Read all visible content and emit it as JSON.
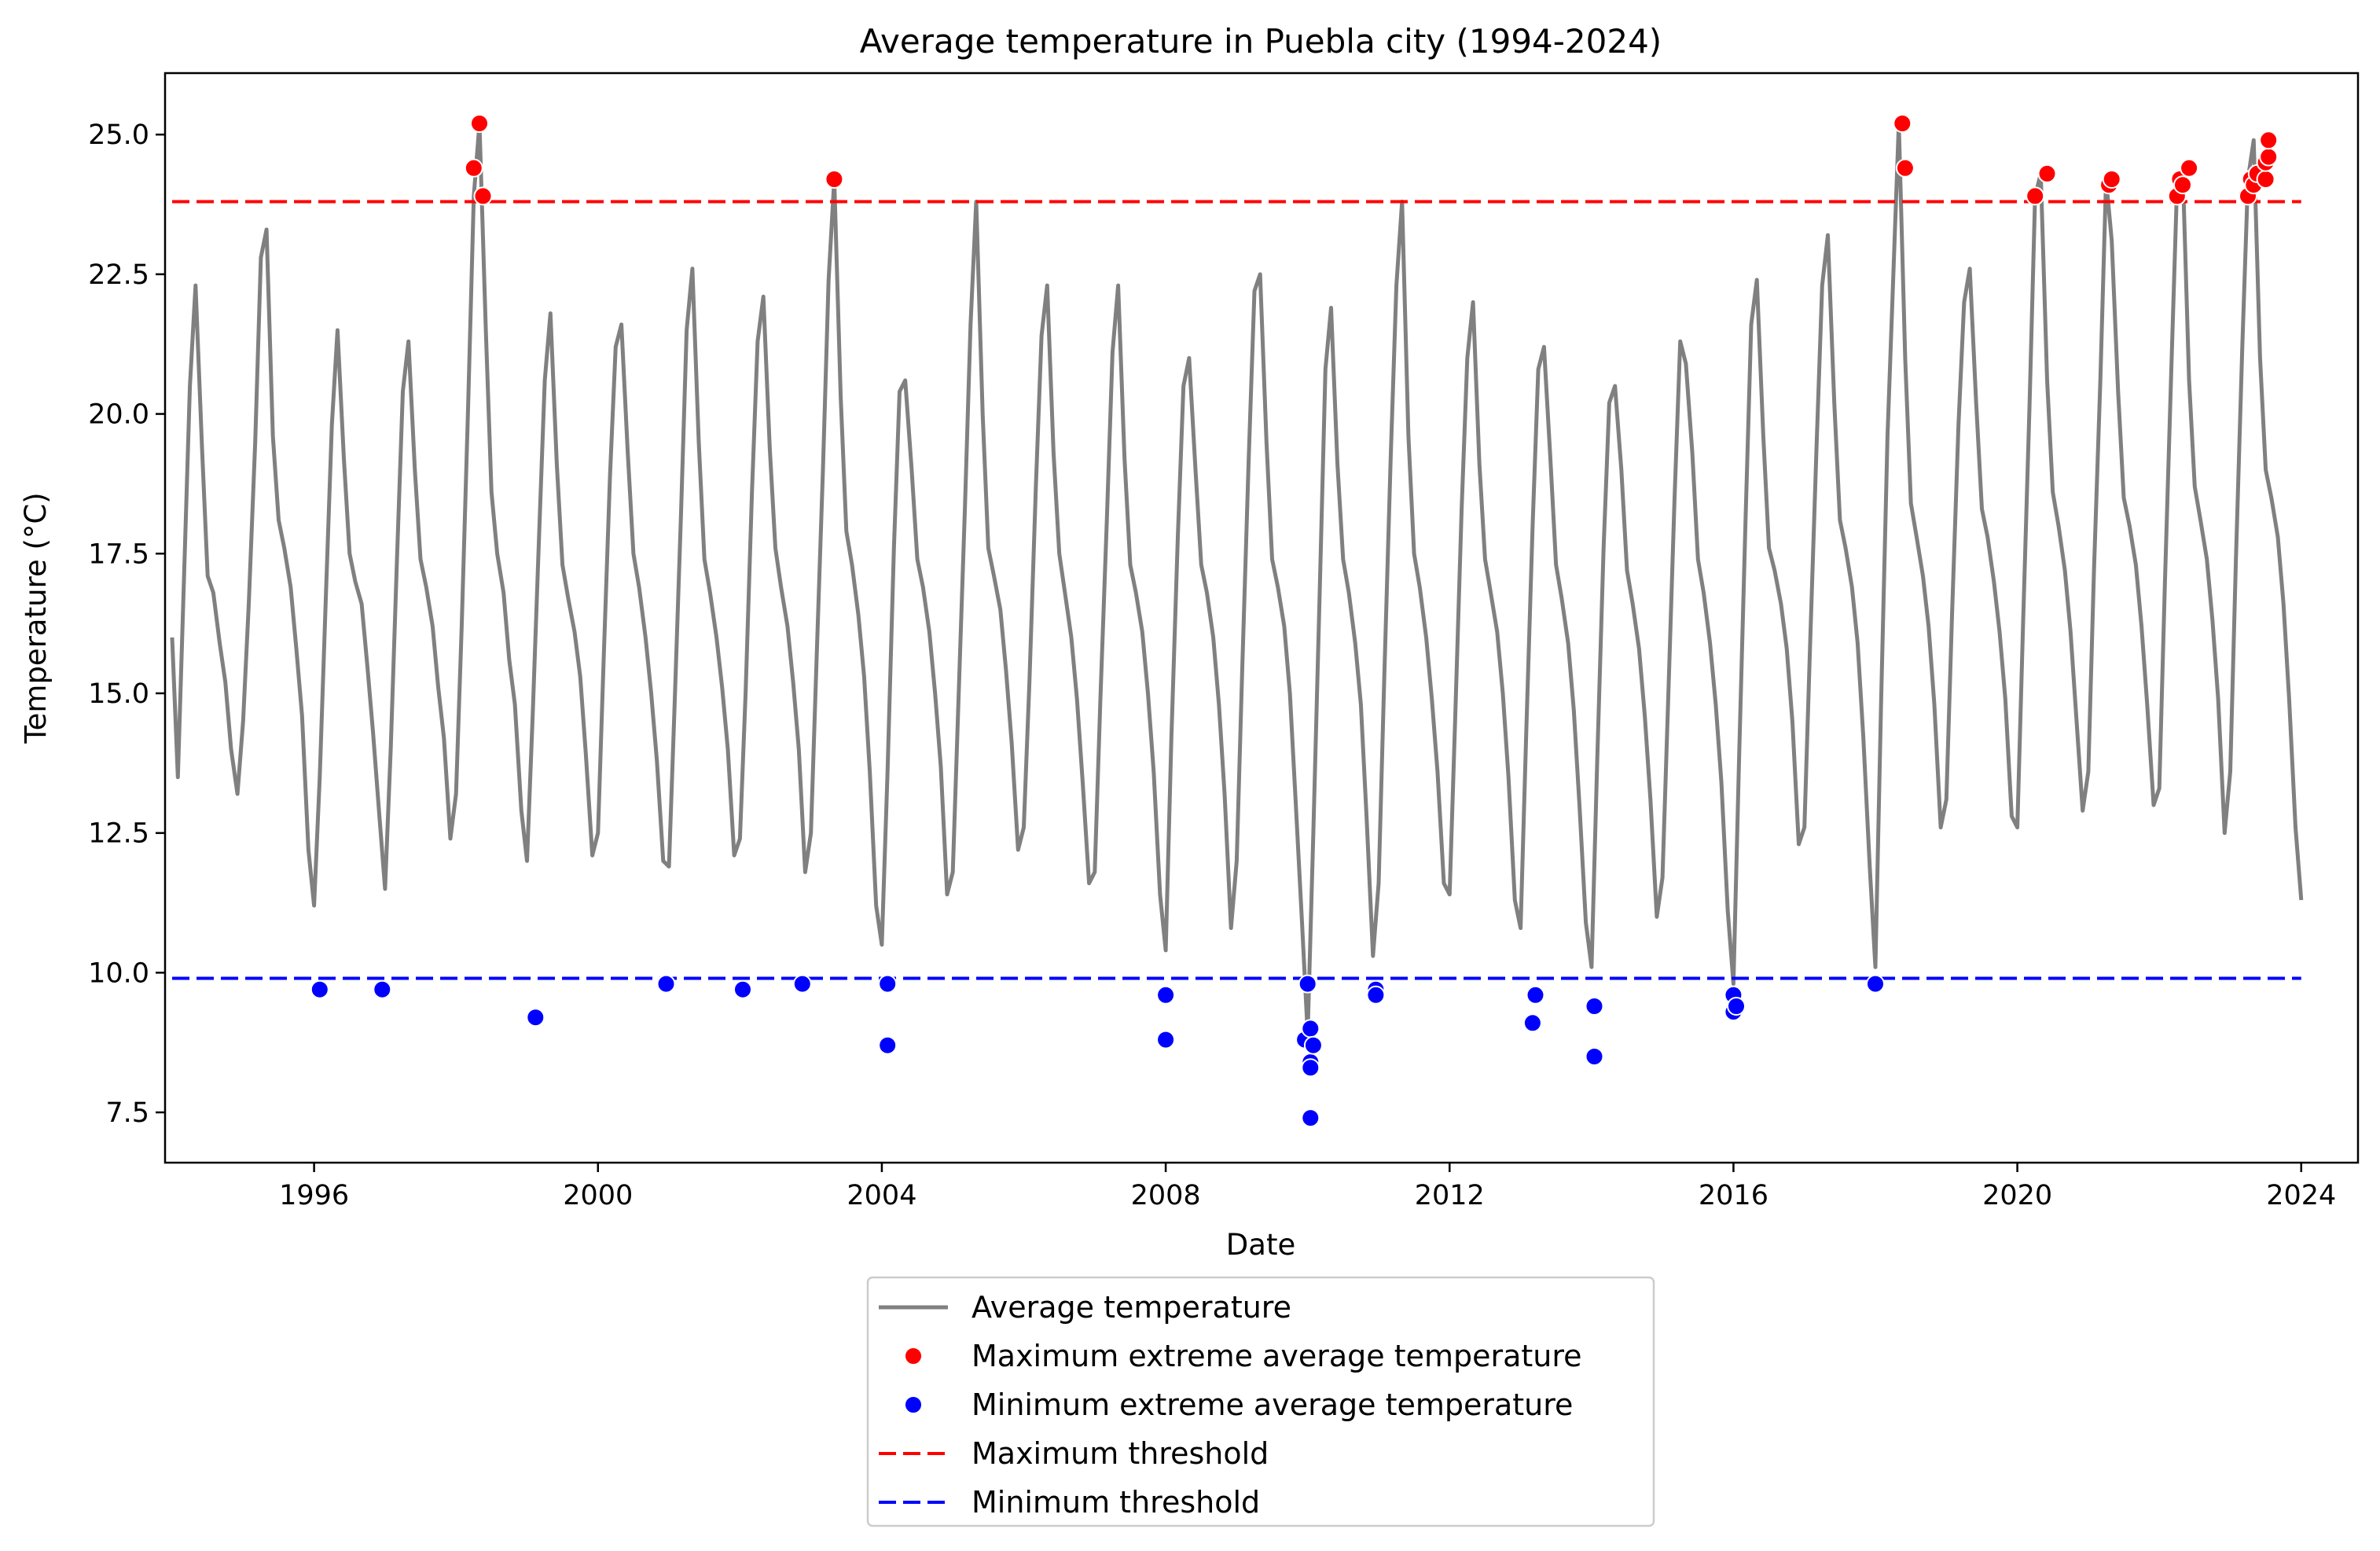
{
  "chart_data": {
    "type": "line",
    "title": "Average temperature in Puebla city (1994-2024)",
    "xlabel": "Date",
    "ylabel": "Temperature (°C)",
    "xlim": [
      1993.9,
      2024.8
    ],
    "ylim": [
      6.6,
      26.1
    ],
    "x_ticks": [
      1996,
      2000,
      2004,
      2008,
      2012,
      2016,
      2020,
      2024
    ],
    "x_tick_labels": [
      "1996",
      "2000",
      "2004",
      "2008",
      "2012",
      "2016",
      "2020",
      "2024"
    ],
    "y_ticks": [
      7.5,
      10.0,
      12.5,
      15.0,
      17.5,
      20.0,
      22.5,
      25.0
    ],
    "y_tick_labels": [
      "7.5",
      "10.0",
      "12.5",
      "15.0",
      "17.5",
      "20.0",
      "22.5",
      "25.0"
    ],
    "grid": false,
    "legend_position": "below plot, center",
    "series": [
      {
        "name": "Average temperature",
        "kind": "line",
        "color": "#808080",
        "x": [
          1994.0,
          1994.08,
          1994.17,
          1994.25,
          1994.33,
          1994.42,
          1994.5,
          1994.58,
          1994.67,
          1994.75,
          1994.83,
          1994.92,
          1995.0,
          1995.08,
          1995.17,
          1995.25,
          1995.33,
          1995.42,
          1995.5,
          1995.58,
          1995.67,
          1995.75,
          1995.83,
          1995.92,
          1996.0,
          1996.08,
          1996.17,
          1996.25,
          1996.33,
          1996.42,
          1996.5,
          1996.58,
          1996.67,
          1996.75,
          1996.83,
          1996.92,
          1997.0,
          1997.08,
          1997.17,
          1997.25,
          1997.33,
          1997.42,
          1997.5,
          1997.58,
          1997.67,
          1997.75,
          1997.83,
          1997.92,
          1998.0,
          1998.08,
          1998.17,
          1998.25,
          1998.33,
          1998.42,
          1998.5,
          1998.58,
          1998.67,
          1998.75,
          1998.83,
          1998.92,
          1999.0,
          1999.08,
          1999.17,
          1999.25,
          1999.33,
          1999.42,
          1999.5,
          1999.58,
          1999.67,
          1999.75,
          1999.83,
          1999.92,
          2000.0,
          2000.08,
          2000.17,
          2000.25,
          2000.33,
          2000.42,
          2000.5,
          2000.58,
          2000.67,
          2000.75,
          2000.83,
          2000.92,
          2001.0,
          2001.08,
          2001.17,
          2001.25,
          2001.33,
          2001.42,
          2001.5,
          2001.58,
          2001.67,
          2001.75,
          2001.83,
          2001.92,
          2002.0,
          2002.08,
          2002.17,
          2002.25,
          2002.33,
          2002.42,
          2002.5,
          2002.58,
          2002.67,
          2002.75,
          2002.83,
          2002.92,
          2003.0,
          2003.08,
          2003.17,
          2003.25,
          2003.33,
          2003.42,
          2003.5,
          2003.58,
          2003.67,
          2003.75,
          2003.83,
          2003.92,
          2004.0,
          2004.08,
          2004.17,
          2004.25,
          2004.33,
          2004.42,
          2004.5,
          2004.58,
          2004.67,
          2004.75,
          2004.83,
          2004.92,
          2005.0,
          2005.08,
          2005.17,
          2005.25,
          2005.33,
          2005.42,
          2005.5,
          2005.58,
          2005.67,
          2005.75,
          2005.83,
          2005.92,
          2006.0,
          2006.08,
          2006.17,
          2006.25,
          2006.33,
          2006.42,
          2006.5,
          2006.58,
          2006.67,
          2006.75,
          2006.83,
          2006.92,
          2007.0,
          2007.08,
          2007.17,
          2007.25,
          2007.33,
          2007.42,
          2007.5,
          2007.58,
          2007.67,
          2007.75,
          2007.83,
          2007.92,
          2008.0,
          2008.08,
          2008.17,
          2008.25,
          2008.33,
          2008.42,
          2008.5,
          2008.58,
          2008.67,
          2008.75,
          2008.83,
          2008.92,
          2009.0,
          2009.08,
          2009.17,
          2009.25,
          2009.33,
          2009.42,
          2009.5,
          2009.58,
          2009.67,
          2009.75,
          2009.83,
          2009.92,
          2010.0,
          2010.08,
          2010.17,
          2010.25,
          2010.33,
          2010.42,
          2010.5,
          2010.58,
          2010.67,
          2010.75,
          2010.83,
          2010.92,
          2011.0,
          2011.08,
          2011.17,
          2011.25,
          2011.33,
          2011.42,
          2011.5,
          2011.58,
          2011.67,
          2011.75,
          2011.83,
          2011.92,
          2012.0,
          2012.08,
          2012.17,
          2012.25,
          2012.33,
          2012.42,
          2012.5,
          2012.58,
          2012.67,
          2012.75,
          2012.83,
          2012.92,
          2013.0,
          2013.08,
          2013.17,
          2013.25,
          2013.33,
          2013.42,
          2013.5,
          2013.58,
          2013.67,
          2013.75,
          2013.83,
          2013.92,
          2014.0,
          2014.08,
          2014.17,
          2014.25,
          2014.33,
          2014.42,
          2014.5,
          2014.58,
          2014.67,
          2014.75,
          2014.83,
          2014.92,
          2015.0,
          2015.08,
          2015.17,
          2015.25,
          2015.33,
          2015.42,
          2015.5,
          2015.58,
          2015.67,
          2015.75,
          2015.83,
          2015.92,
          2016.0,
          2016.08,
          2016.17,
          2016.25,
          2016.33,
          2016.42,
          2016.5,
          2016.58,
          2016.67,
          2016.75,
          2016.83,
          2016.92,
          2017.0,
          2017.08,
          2017.17,
          2017.25,
          2017.33,
          2017.42,
          2017.5,
          2017.58,
          2017.67,
          2017.75,
          2017.83,
          2017.92,
          2018.0,
          2018.08,
          2018.17,
          2018.25,
          2018.33,
          2018.42,
          2018.5,
          2018.58,
          2018.67,
          2018.75,
          2018.83,
          2018.92,
          2019.0,
          2019.08,
          2019.17,
          2019.25,
          2019.33,
          2019.42,
          2019.5,
          2019.58,
          2019.67,
          2019.75,
          2019.83,
          2019.92,
          2020.0,
          2020.08,
          2020.17,
          2020.25,
          2020.33,
          2020.42,
          2020.5,
          2020.58,
          2020.67,
          2020.75,
          2020.83,
          2020.92,
          2021.0,
          2021.08,
          2021.17,
          2021.25,
          2021.33,
          2021.42,
          2021.5,
          2021.58,
          2021.67,
          2021.75,
          2021.83,
          2021.92,
          2022.0,
          2022.08,
          2022.17,
          2022.25,
          2022.33,
          2022.42,
          2022.5,
          2022.58,
          2022.67,
          2022.75,
          2022.83,
          2022.92,
          2023.0,
          2023.08,
          2023.17,
          2023.25,
          2023.33,
          2023.42,
          2023.5,
          2023.58,
          2023.67,
          2023.75,
          2023.83,
          2023.92,
          2024.0
        ],
        "y": [
          16.0,
          13.5,
          17.2,
          20.5,
          22.3,
          19.4,
          17.1,
          16.8,
          15.9,
          15.2,
          14.0,
          13.2,
          14.5,
          16.6,
          19.5,
          22.8,
          23.3,
          19.6,
          18.1,
          17.6,
          16.9,
          15.8,
          14.6,
          12.2,
          11.2,
          13.5,
          16.9,
          19.8,
          21.5,
          19.2,
          17.5,
          17.0,
          16.6,
          15.5,
          14.3,
          12.8,
          11.5,
          14.0,
          17.5,
          20.4,
          21.3,
          19.0,
          17.4,
          16.9,
          16.2,
          15.1,
          14.2,
          12.4,
          13.2,
          16.2,
          20.1,
          23.9,
          25.2,
          21.5,
          18.6,
          17.5,
          16.8,
          15.6,
          14.8,
          12.9,
          12.0,
          14.6,
          17.8,
          20.6,
          21.8,
          19.1,
          17.3,
          16.7,
          16.1,
          15.3,
          13.9,
          12.1,
          12.5,
          15.6,
          18.9,
          21.2,
          21.6,
          19.3,
          17.5,
          16.9,
          16.0,
          15.0,
          13.8,
          12.0,
          11.9,
          14.8,
          18.2,
          21.5,
          22.6,
          19.5,
          17.4,
          16.8,
          16.0,
          15.1,
          14.0,
          12.1,
          12.4,
          15.0,
          18.6,
          21.3,
          22.1,
          19.4,
          17.6,
          16.9,
          16.2,
          15.2,
          14.0,
          11.8,
          12.5,
          15.6,
          19.0,
          22.4,
          24.2,
          20.3,
          17.9,
          17.3,
          16.4,
          15.3,
          13.6,
          11.2,
          10.5,
          13.6,
          17.6,
          20.4,
          20.6,
          19.0,
          17.4,
          16.9,
          16.1,
          15.0,
          13.7,
          11.4,
          11.8,
          14.9,
          18.3,
          21.6,
          23.8,
          20.0,
          17.6,
          17.1,
          16.5,
          15.4,
          14.1,
          12.2,
          12.6,
          15.2,
          18.7,
          21.4,
          22.3,
          19.3,
          17.5,
          16.8,
          16.0,
          14.9,
          13.4,
          11.6,
          11.8,
          14.9,
          18.1,
          21.1,
          22.3,
          19.2,
          17.3,
          16.8,
          16.1,
          15.0,
          13.6,
          11.4,
          10.4,
          14.2,
          17.8,
          20.5,
          21.0,
          19.0,
          17.3,
          16.8,
          16.0,
          14.8,
          13.2,
          10.8,
          12.0,
          15.5,
          19.2,
          22.2,
          22.5,
          19.5,
          17.4,
          16.9,
          16.2,
          15.0,
          13.1,
          10.9,
          8.9,
          12.5,
          16.8,
          20.8,
          21.9,
          19.1,
          17.4,
          16.8,
          15.9,
          14.8,
          12.8,
          10.3,
          11.6,
          15.3,
          19.2,
          22.3,
          23.8,
          19.6,
          17.5,
          16.9,
          16.0,
          14.9,
          13.6,
          11.6,
          11.4,
          14.6,
          18.3,
          21.0,
          22.0,
          19.1,
          17.4,
          16.8,
          16.1,
          15.0,
          13.5,
          11.3,
          10.8,
          14.3,
          18.0,
          20.8,
          21.2,
          19.2,
          17.3,
          16.7,
          15.9,
          14.7,
          13.0,
          10.9,
          10.1,
          13.8,
          17.6,
          20.2,
          20.5,
          19.0,
          17.2,
          16.6,
          15.8,
          14.6,
          13.1,
          11.0,
          11.7,
          14.9,
          18.5,
          21.3,
          20.9,
          19.3,
          17.4,
          16.8,
          15.9,
          14.8,
          13.4,
          11.1,
          9.8,
          13.9,
          18.1,
          21.6,
          22.4,
          19.6,
          17.6,
          17.2,
          16.6,
          15.8,
          14.5,
          12.3,
          12.6,
          15.9,
          19.4,
          22.3,
          23.2,
          20.2,
          18.1,
          17.6,
          16.9,
          15.9,
          14.2,
          11.9,
          10.1,
          14.8,
          19.6,
          22.4,
          25.2,
          21.0,
          18.4,
          17.8,
          17.1,
          16.2,
          14.8,
          12.6,
          13.1,
          16.4,
          19.8,
          22.0,
          22.6,
          20.2,
          18.3,
          17.8,
          17.0,
          16.1,
          14.9,
          12.8,
          12.6,
          16.2,
          20.1,
          23.9,
          24.3,
          20.6,
          18.6,
          18.0,
          17.2,
          16.1,
          14.6,
          12.9,
          13.6,
          17.2,
          20.6,
          24.2,
          23.1,
          20.4,
          18.5,
          18.0,
          17.3,
          16.2,
          14.8,
          13.0,
          13.3,
          17.0,
          20.8,
          24.1,
          24.4,
          20.6,
          18.7,
          18.1,
          17.4,
          16.3,
          14.9,
          12.5,
          13.6,
          17.4,
          21.2,
          24.2,
          24.9,
          21.0,
          19.0,
          18.5,
          17.8,
          16.6,
          14.9,
          12.6,
          11.3
        ]
      },
      {
        "name": "Maximum extreme average temperature",
        "kind": "scatter",
        "color": "#ff0000",
        "points": [
          [
            1998.25,
            24.4
          ],
          [
            1998.33,
            25.2
          ],
          [
            1998.38,
            23.9
          ],
          [
            2003.33,
            24.2
          ],
          [
            2018.38,
            25.2
          ],
          [
            2018.42,
            24.4
          ],
          [
            2020.25,
            23.9
          ],
          [
            2020.42,
            24.3
          ],
          [
            2021.29,
            24.1
          ],
          [
            2021.33,
            24.2
          ],
          [
            2022.25,
            23.9
          ],
          [
            2022.29,
            24.2
          ],
          [
            2022.33,
            24.1
          ],
          [
            2022.42,
            24.4
          ],
          [
            2023.25,
            23.9
          ],
          [
            2023.29,
            24.2
          ],
          [
            2023.33,
            24.1
          ],
          [
            2023.38,
            24.3
          ],
          [
            2023.5,
            24.2
          ],
          [
            2023.5,
            24.5
          ],
          [
            2023.54,
            24.6
          ],
          [
            2023.54,
            24.9
          ]
        ]
      },
      {
        "name": "Minimum extreme average temperature",
        "kind": "scatter",
        "color": "#0000ff",
        "points": [
          [
            1996.08,
            9.7
          ],
          [
            1996.96,
            9.7
          ],
          [
            1999.12,
            9.2
          ],
          [
            2000.96,
            9.8
          ],
          [
            2002.04,
            9.7
          ],
          [
            2002.88,
            9.8
          ],
          [
            2004.08,
            9.8
          ],
          [
            2004.08,
            8.7
          ],
          [
            2008.0,
            9.6
          ],
          [
            2008.0,
            8.8
          ],
          [
            2009.96,
            8.8
          ],
          [
            2010.0,
            9.8
          ],
          [
            2010.04,
            9.0
          ],
          [
            2010.04,
            8.4
          ],
          [
            2010.04,
            8.3
          ],
          [
            2010.08,
            8.7
          ],
          [
            2010.04,
            7.4
          ],
          [
            2010.96,
            9.7
          ],
          [
            2010.96,
            9.6
          ],
          [
            2013.17,
            9.1
          ],
          [
            2013.21,
            9.6
          ],
          [
            2014.04,
            9.4
          ],
          [
            2014.04,
            8.5
          ],
          [
            2016.0,
            9.6
          ],
          [
            2016.0,
            9.3
          ],
          [
            2016.04,
            9.4
          ],
          [
            2018.0,
            9.8
          ]
        ]
      },
      {
        "name": "Maximum threshold",
        "kind": "hline",
        "color": "#ff0000",
        "y": 23.8,
        "x_range": [
          1994.0,
          2024.0
        ]
      },
      {
        "name": "Minimum threshold",
        "kind": "hline",
        "color": "#0000ff",
        "y": 9.9,
        "x_range": [
          1994.0,
          2024.0
        ]
      }
    ]
  }
}
